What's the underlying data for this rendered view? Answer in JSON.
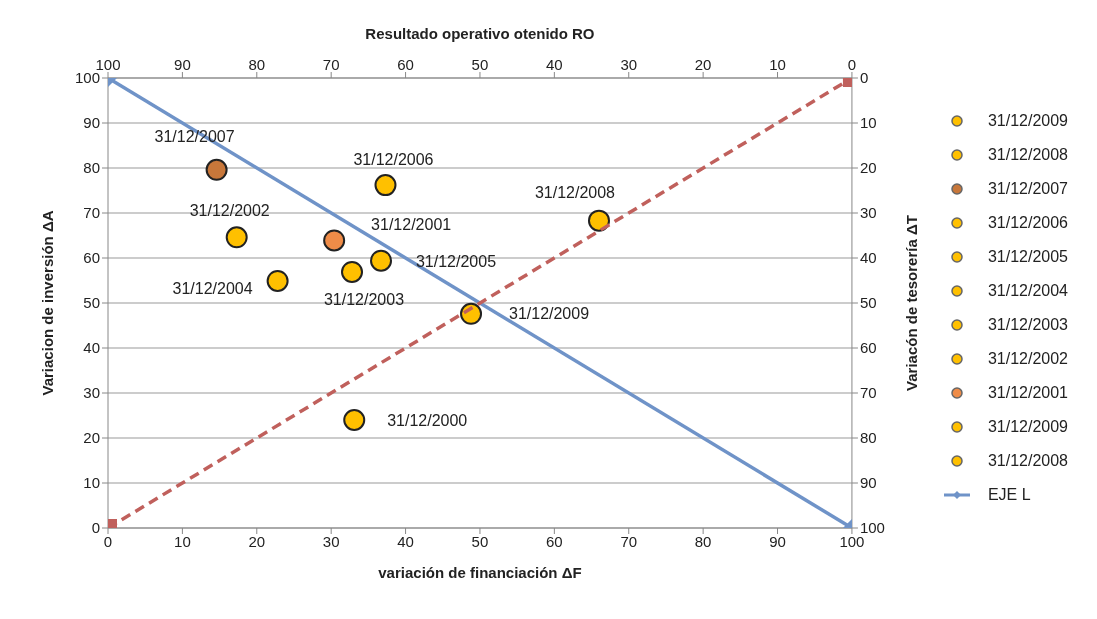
{
  "chart_data": {
    "type": "scatter",
    "x2label": "Resultado operativo otenido RO",
    "xlabel": "variación de financiación ΔF",
    "ylabel": "Variacion de inversión  ΔA",
    "y2label": "Variacón de tesorería ΔT",
    "xlim": [
      0,
      100
    ],
    "xticks": [
      0,
      10,
      20,
      30,
      40,
      50,
      60,
      70,
      80,
      90,
      100
    ],
    "x2lim": [
      100,
      0
    ],
    "x2ticks": [
      100,
      90,
      80,
      70,
      60,
      50,
      40,
      30,
      20,
      10,
      0
    ],
    "ylim": [
      0,
      100
    ],
    "yticks": [
      0,
      10,
      20,
      30,
      40,
      50,
      60,
      70,
      80,
      90,
      100
    ],
    "y2lim": [
      100,
      0
    ],
    "y2ticks": [
      0,
      10,
      20,
      30,
      40,
      50,
      60,
      70,
      80,
      90,
      100
    ],
    "grid": "y",
    "legend": "right",
    "marker": "circle",
    "series": [
      {
        "name": "31/12/2009",
        "color": "#ffc000"
      },
      {
        "name": "31/12/2008",
        "color": "#ffc000"
      },
      {
        "name": "31/12/2007",
        "color": "#c8773a",
        "x": [
          14.6
        ],
        "values": [
          79.6
        ]
      },
      {
        "name": "31/12/2006",
        "color": "#ffc000",
        "x": [
          37.3
        ],
        "values": [
          76.2
        ]
      },
      {
        "name": "31/12/2005",
        "color": "#ffc000",
        "x": [
          36.7
        ],
        "values": [
          59.4
        ]
      },
      {
        "name": "31/12/2004",
        "color": "#ffc000",
        "x": [
          22.8
        ],
        "values": [
          54.9
        ]
      },
      {
        "name": "31/12/2003",
        "color": "#ffc000",
        "x": [
          32.8
        ],
        "values": [
          56.9
        ]
      },
      {
        "name": "31/12/2002",
        "color": "#ffc000",
        "x": [
          17.3
        ],
        "values": [
          64.6
        ]
      },
      {
        "name": "31/12/2001",
        "color": "#ef8c48",
        "x": [
          30.4
        ],
        "values": [
          63.9
        ]
      },
      {
        "name": "31/12/2009",
        "color": "#ffc000",
        "x": [
          48.8
        ],
        "values": [
          47.6
        ]
      },
      {
        "name": "31/12/2008",
        "color": "#ffc000",
        "x": [
          66
        ],
        "values": [
          68.3
        ]
      },
      {
        "color": "#ffc000",
        "x": [
          33.1
        ],
        "values": [
          24
        ]
      },
      {
        "name": "EJE L",
        "type": "line",
        "color": "#6f93c8",
        "marker": "diamond",
        "line_style": "solid",
        "x": [
          0,
          100
        ],
        "values": [
          100,
          0
        ]
      },
      {
        "type": "line",
        "axis": "y2",
        "color": "#c0605c",
        "marker": "square",
        "line_style": "dashed",
        "x": [
          0,
          100
        ],
        "values": [
          100,
          0
        ]
      }
    ],
    "annotations": [
      {
        "text": "31/12/2007",
        "x": 14.6,
        "y": 79.6
      },
      {
        "text": "31/12/2006",
        "x": 37.3,
        "y": 76.2
      },
      {
        "text": "31/12/2002",
        "x": 17.3,
        "y": 64.6
      },
      {
        "text": "31/12/2001",
        "x": 30.4,
        "y": 63.9
      },
      {
        "text": "31/12/2008",
        "x": 66,
        "y": 68.3
      },
      {
        "text": "31/12/2005",
        "x": 36.7,
        "y": 59.4
      },
      {
        "text": "31/12/2003",
        "x": 32.8,
        "y": 56.9
      },
      {
        "text": "31/12/2004",
        "x": 22.8,
        "y": 54.9
      },
      {
        "text": "31/12/2009",
        "x": 48.8,
        "y": 47.6
      },
      {
        "text": "31/12/2000",
        "x": 33.1,
        "y": 24
      }
    ]
  }
}
